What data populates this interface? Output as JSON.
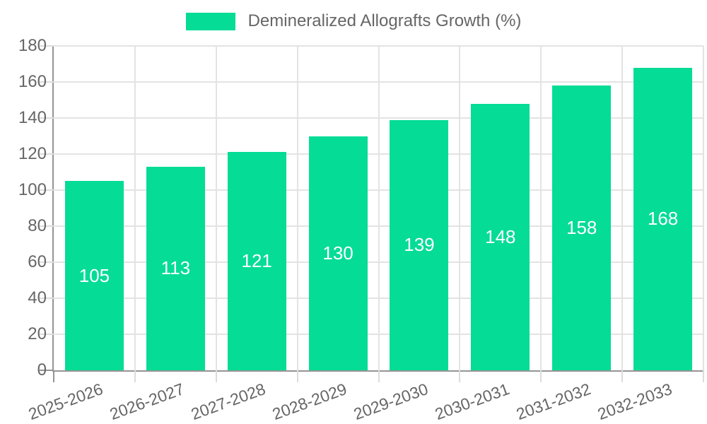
{
  "legend": {
    "items": [
      {
        "label": "Demineralized Allografts Growth (%)",
        "color": "#05dc96"
      }
    ]
  },
  "chart_data": {
    "type": "bar",
    "title": "Demineralized Allografts Growth (%)",
    "categories": [
      "2025-2026",
      "2026-2027",
      "2027-2028",
      "2028-2029",
      "2029-2030",
      "2030-2031",
      "2031-2032",
      "2032-2033"
    ],
    "values": [
      105,
      113,
      121,
      130,
      139,
      148,
      158,
      168
    ],
    "xlabel": "",
    "ylabel": "",
    "ylim": [
      0,
      180
    ],
    "yticks": [
      0,
      20,
      40,
      60,
      80,
      100,
      120,
      140,
      160,
      180
    ],
    "grid": true,
    "legend_position": "top-center",
    "x_label_rotation_deg": -20,
    "colors": {
      "bar": "#05dc96",
      "value_label": "#ffffff",
      "axis_text": "#666666",
      "gridline": "#e3e3e3",
      "axis_line": "#949494"
    }
  }
}
